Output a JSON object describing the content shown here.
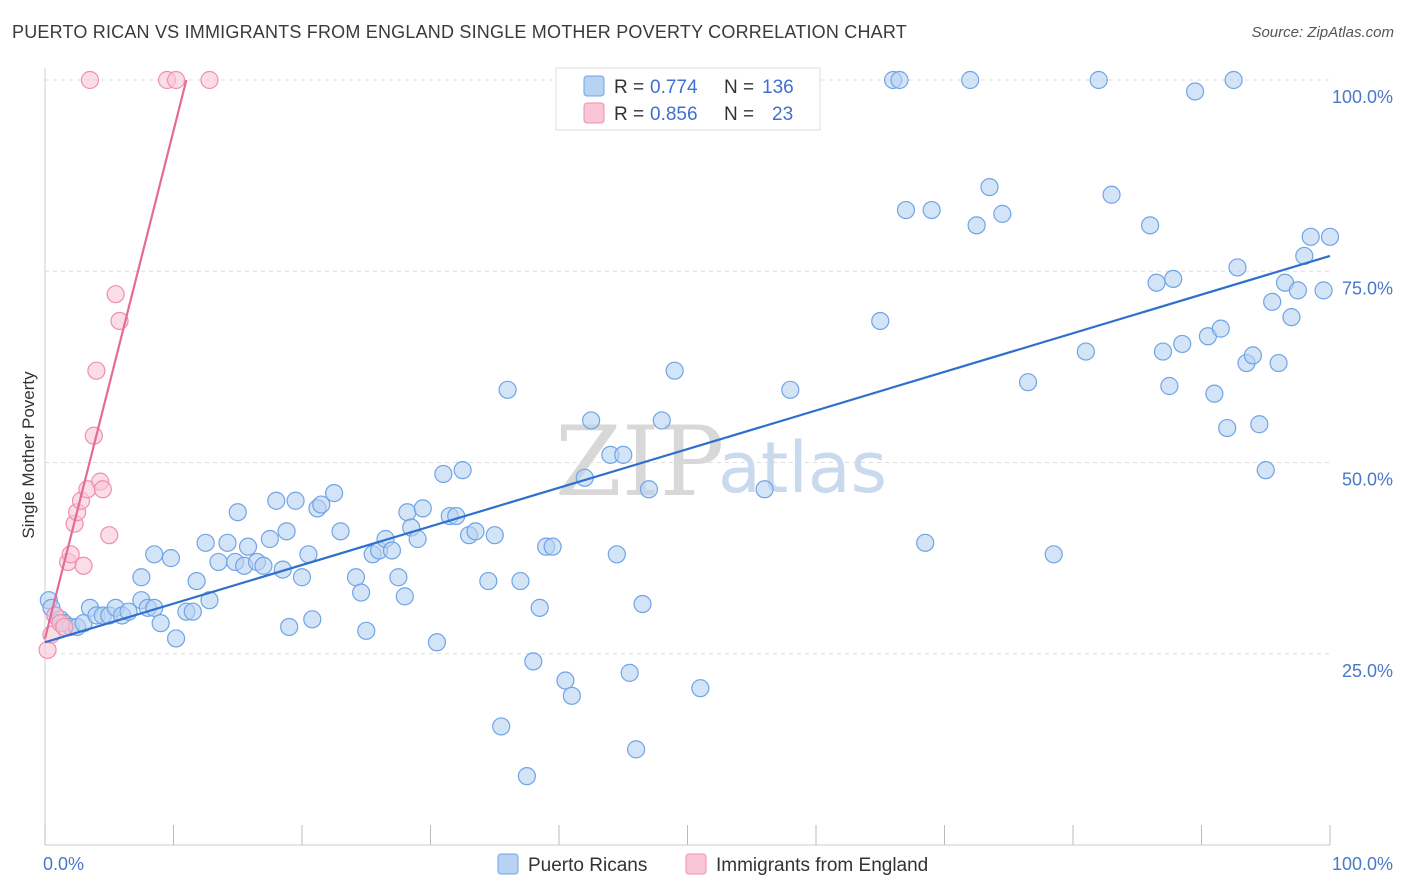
{
  "title": "PUERTO RICAN VS IMMIGRANTS FROM ENGLAND SINGLE MOTHER POVERTY CORRELATION CHART",
  "source": "Source: ZipAtlas.com",
  "watermark": {
    "zip": "ZIP",
    "atlas": "atlas"
  },
  "colors": {
    "blue": "#6fa4e8",
    "blue_fill": "#b8d2f2",
    "blue_line": "#2f6fce",
    "pink": "#f08fb0",
    "pink_fill": "#f8c6d6",
    "pink_line": "#e46b98",
    "tick_text": "#4a78c8",
    "grid": "#dddddd"
  },
  "legend": {
    "items": [
      {
        "r_label": "R =",
        "r_value": "0.774",
        "n_label": "N =",
        "n_value": "136",
        "color": "blue"
      },
      {
        "r_label": "R =",
        "r_value": "0.856",
        "n_label": "N =",
        "n_value": "23",
        "color": "pink"
      }
    ]
  },
  "bottom_legend": [
    {
      "label": "Puerto Ricans",
      "color": "blue"
    },
    {
      "label": "Immigrants from England",
      "color": "pink"
    }
  ],
  "chart_data": {
    "type": "scatter",
    "title": "PUERTO RICAN VS IMMIGRANTS FROM ENGLAND SINGLE MOTHER POVERTY CORRELATION CHART",
    "xlabel": "",
    "ylabel": "Single Mother Poverty",
    "xlim": [
      0,
      100
    ],
    "ylim": [
      0,
      100
    ],
    "x_tick_labels": [
      {
        "value": 0,
        "label": "0.0%"
      },
      {
        "value": 100,
        "label": "100.0%"
      }
    ],
    "y_tick_labels": [
      {
        "value": 25,
        "label": "25.0%"
      },
      {
        "value": 50,
        "label": "50.0%"
      },
      {
        "value": 75,
        "label": "75.0%"
      },
      {
        "value": 100,
        "label": "100.0%"
      }
    ],
    "grid": true,
    "legend_position": "top-center",
    "series": [
      {
        "name": "Puerto Ricans",
        "color": "blue",
        "trend": {
          "x": [
            0,
            100
          ],
          "y": [
            26.5,
            77
          ]
        },
        "points": [
          [
            0.3,
            32
          ],
          [
            0.5,
            31
          ],
          [
            0.8,
            30
          ],
          [
            1.2,
            29.5
          ],
          [
            1.5,
            29
          ],
          [
            2,
            28.5
          ],
          [
            2.5,
            28.5
          ],
          [
            3,
            29
          ],
          [
            3.5,
            31
          ],
          [
            4,
            30
          ],
          [
            4.5,
            30
          ],
          [
            5,
            30
          ],
          [
            5.5,
            31
          ],
          [
            6,
            30
          ],
          [
            6.5,
            30.5
          ],
          [
            7.5,
            32
          ],
          [
            8,
            31
          ],
          [
            8.5,
            31
          ],
          [
            9,
            29
          ],
          [
            7.5,
            35
          ],
          [
            8.5,
            38
          ],
          [
            9.8,
            37.5
          ],
          [
            10.2,
            27
          ],
          [
            11,
            30.5
          ],
          [
            11.5,
            30.5
          ],
          [
            11.8,
            34.5
          ],
          [
            12.5,
            39.5
          ],
          [
            12.8,
            32
          ],
          [
            13.5,
            37
          ],
          [
            14.2,
            39.5
          ],
          [
            14.8,
            37
          ],
          [
            15,
            43.5
          ],
          [
            15.5,
            36.5
          ],
          [
            15.8,
            39
          ],
          [
            16.5,
            37
          ],
          [
            17,
            36.5
          ],
          [
            17.5,
            40
          ],
          [
            18,
            45
          ],
          [
            18.5,
            36
          ],
          [
            18.8,
            41
          ],
          [
            19,
            28.5
          ],
          [
            19.5,
            45
          ],
          [
            20,
            35
          ],
          [
            20.5,
            38
          ],
          [
            20.8,
            29.5
          ],
          [
            21.2,
            44
          ],
          [
            21.5,
            44.5
          ],
          [
            22.5,
            46
          ],
          [
            23,
            41
          ],
          [
            24.2,
            35
          ],
          [
            24.6,
            33
          ],
          [
            25,
            28
          ],
          [
            25.5,
            38
          ],
          [
            26,
            38.5
          ],
          [
            26.5,
            40
          ],
          [
            27,
            38.5
          ],
          [
            27.5,
            35
          ],
          [
            28,
            32.5
          ],
          [
            28.2,
            43.5
          ],
          [
            28.5,
            41.5
          ],
          [
            29,
            40
          ],
          [
            29.4,
            44
          ],
          [
            30.5,
            26.5
          ],
          [
            31,
            48.5
          ],
          [
            31.5,
            43
          ],
          [
            32,
            43
          ],
          [
            32.5,
            49
          ],
          [
            33,
            40.5
          ],
          [
            33.5,
            41
          ],
          [
            34.5,
            34.5
          ],
          [
            35,
            40.5
          ],
          [
            35.5,
            15.5
          ],
          [
            36,
            59.5
          ],
          [
            37,
            34.5
          ],
          [
            37.5,
            9
          ],
          [
            38,
            24
          ],
          [
            38.5,
            31
          ],
          [
            39,
            39
          ],
          [
            39.5,
            39
          ],
          [
            40.5,
            21.5
          ],
          [
            41,
            19.5
          ],
          [
            42,
            48
          ],
          [
            42.5,
            55.5
          ],
          [
            44,
            51
          ],
          [
            44.5,
            38
          ],
          [
            45,
            51
          ],
          [
            45.5,
            22.5
          ],
          [
            46,
            12.5
          ],
          [
            46.5,
            31.5
          ],
          [
            47,
            46.5
          ],
          [
            48,
            55.5
          ],
          [
            49,
            62
          ],
          [
            51,
            20.5
          ],
          [
            56,
            46.5
          ],
          [
            58,
            59.5
          ],
          [
            65,
            68.5
          ],
          [
            66,
            100
          ],
          [
            66.5,
            100
          ],
          [
            67,
            83
          ],
          [
            68.5,
            39.5
          ],
          [
            69,
            83
          ],
          [
            72,
            100
          ],
          [
            72.5,
            81
          ],
          [
            73.5,
            86
          ],
          [
            74.5,
            82.5
          ],
          [
            76.5,
            60.5
          ],
          [
            78.5,
            38
          ],
          [
            81,
            64.5
          ],
          [
            82,
            100
          ],
          [
            83,
            85
          ],
          [
            86,
            81
          ],
          [
            86.5,
            73.5
          ],
          [
            87,
            64.5
          ],
          [
            87.5,
            60
          ],
          [
            87.8,
            74
          ],
          [
            88.5,
            65.5
          ],
          [
            89.5,
            98.5
          ],
          [
            90.5,
            66.5
          ],
          [
            91,
            59
          ],
          [
            91.5,
            67.5
          ],
          [
            92,
            54.5
          ],
          [
            92.5,
            100
          ],
          [
            92.8,
            75.5
          ],
          [
            93.5,
            63
          ],
          [
            94,
            64
          ],
          [
            94.5,
            55
          ],
          [
            95,
            49
          ],
          [
            95.5,
            71
          ],
          [
            96,
            63
          ],
          [
            96.5,
            73.5
          ],
          [
            97,
            69
          ],
          [
            97.5,
            72.5
          ],
          [
            98,
            77
          ],
          [
            98.5,
            79.5
          ],
          [
            99.5,
            72.5
          ],
          [
            100,
            79.5
          ]
        ]
      },
      {
        "name": "Immigrants from England",
        "color": "pink",
        "trend": {
          "x": [
            0,
            11
          ],
          "y": [
            27,
            100
          ]
        },
        "points": [
          [
            0.2,
            25.5
          ],
          [
            0.5,
            27.5
          ],
          [
            0.8,
            30
          ],
          [
            1.2,
            29
          ],
          [
            1.5,
            28.5
          ],
          [
            1.8,
            37
          ],
          [
            2,
            38
          ],
          [
            2.3,
            42
          ],
          [
            2.5,
            43.5
          ],
          [
            2.8,
            45
          ],
          [
            3,
            36.5
          ],
          [
            3.3,
            46.5
          ],
          [
            3.8,
            53.5
          ],
          [
            4,
            62
          ],
          [
            4.3,
            47.5
          ],
          [
            4.5,
            46.5
          ],
          [
            5,
            40.5
          ],
          [
            5.5,
            72
          ],
          [
            5.8,
            68.5
          ],
          [
            3.5,
            100
          ],
          [
            9.5,
            100
          ],
          [
            10.2,
            100
          ],
          [
            12.8,
            100
          ]
        ]
      }
    ]
  }
}
